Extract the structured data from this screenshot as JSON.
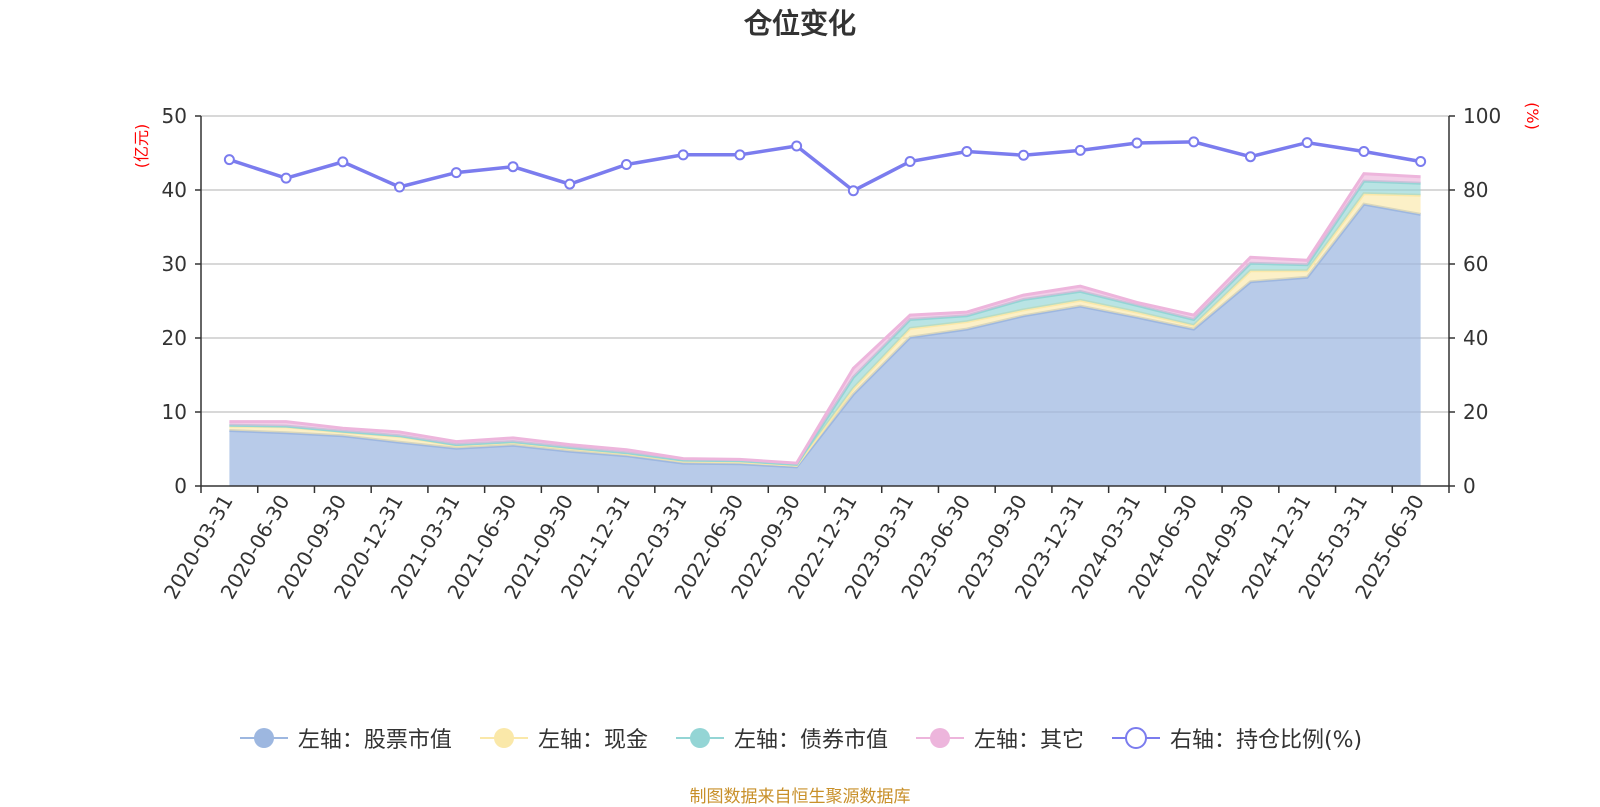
{
  "chart_data": {
    "type": "area",
    "title": "仓位变化",
    "left_axis_unit": "(亿元)",
    "right_axis_unit": "(%)",
    "ylim_left": [
      0,
      50
    ],
    "yticks_left": [
      "0",
      "10",
      "20",
      "30",
      "40",
      "50"
    ],
    "ylim_right": [
      0,
      100
    ],
    "yticks_right": [
      "0",
      "20",
      "40",
      "60",
      "80",
      "100"
    ],
    "grid": true,
    "legend_position": "bottom",
    "categories": [
      "2020-03-31",
      "2020-06-30",
      "2020-09-30",
      "2020-12-31",
      "2021-03-31",
      "2021-06-30",
      "2021-09-30",
      "2021-12-31",
      "2022-03-31",
      "2022-06-30",
      "2022-09-30",
      "2022-12-31",
      "2023-03-31",
      "2023-06-30",
      "2023-09-30",
      "2023-12-31",
      "2024-03-31",
      "2024-06-30",
      "2024-09-30",
      "2024-12-31",
      "2025-03-31",
      "2025-06-30"
    ],
    "series": [
      {
        "name": "左轴：股票市值",
        "axis": "left",
        "color": "#9db7e0",
        "values": [
          7.5,
          7.2,
          6.8,
          5.9,
          5.1,
          5.5,
          4.7,
          4.1,
          3.1,
          3.0,
          2.6,
          12.4,
          20.1,
          21.2,
          23.0,
          24.3,
          22.8,
          21.2,
          27.6,
          28.2,
          38.1,
          36.7
        ]
      },
      {
        "name": "左轴：现金",
        "axis": "left",
        "color": "#fae8a9",
        "values": [
          0.6,
          0.8,
          0.5,
          0.8,
          0.4,
          0.4,
          0.4,
          0.3,
          0.3,
          0.3,
          0.2,
          0.8,
          1.2,
          1.0,
          0.8,
          0.8,
          0.7,
          0.5,
          1.5,
          0.9,
          1.4,
          2.6
        ]
      },
      {
        "name": "左轴：债券市值",
        "axis": "left",
        "color": "#94d5d5",
        "values": [
          0.1,
          0.1,
          0.1,
          0.1,
          0.1,
          0.1,
          0.1,
          0.1,
          0.1,
          0.1,
          0.1,
          1.5,
          1.2,
          0.8,
          1.4,
          1.2,
          0.9,
          0.8,
          1.0,
          0.8,
          1.7,
          1.6
        ]
      },
      {
        "name": "左轴：其它",
        "axis": "left",
        "color": "#edb5dc",
        "values": [
          0.5,
          0.6,
          0.4,
          0.5,
          0.4,
          0.5,
          0.4,
          0.4,
          0.2,
          0.2,
          0.2,
          1.2,
          0.6,
          0.5,
          0.6,
          0.7,
          0.4,
          0.6,
          0.8,
          0.6,
          1.0,
          0.9
        ]
      },
      {
        "name": "右轴：持仓比例(%)",
        "axis": "right",
        "color": "#7b7cee",
        "values": [
          88.2,
          83.2,
          87.6,
          80.8,
          84.7,
          86.3,
          81.6,
          86.9,
          89.5,
          89.5,
          91.9,
          79.8,
          87.7,
          90.4,
          89.4,
          90.7,
          92.7,
          93.0,
          89.0,
          92.8,
          90.4,
          87.7
        ]
      }
    ],
    "source": "制图数据来自恒生聚源数据库"
  }
}
